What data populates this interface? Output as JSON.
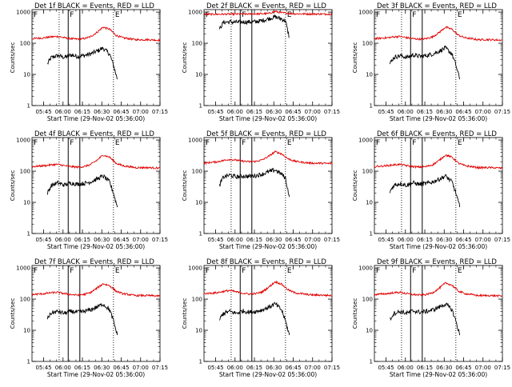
{
  "figure": {
    "background": "#ffffff",
    "event_color": "#000000",
    "lld_color": "#e00000"
  },
  "chart_data": [
    {
      "type": "line",
      "title": "Det 1f BLACK = Events, RED = LLD",
      "xlabel": "Start Time (29-Nov-02 05:36:00)",
      "ylabel": "Counts/sec",
      "xticks": [
        "05:45",
        "06:00",
        "06:15",
        "06:30",
        "06:45",
        "07:00",
        "07:15"
      ],
      "xlim_min": [
        0,
        99
      ],
      "ylim": [
        1,
        1200
      ],
      "yscale": "log",
      "yticks": [
        "1",
        "10",
        "100",
        "1000"
      ],
      "dotted_lines_min": [
        21,
        63
      ],
      "solid_lines_min": [
        28,
        37
      ],
      "markers": [
        {
          "label": "F",
          "at_min": 0
        },
        {
          "label": "F",
          "at_min": 28
        },
        {
          "label": "E",
          "at_min": 63
        }
      ],
      "series": [
        {
          "name": "Events",
          "x": [
            12,
            15,
            20,
            25,
            30,
            35,
            40,
            45,
            50,
            55,
            60,
            63,
            66
          ],
          "y": [
            22,
            35,
            40,
            35,
            42,
            38,
            40,
            45,
            55,
            70,
            45,
            20,
            7
          ]
        },
        {
          "name": "LLD",
          "x": [
            0,
            5,
            10,
            15,
            20,
            25,
            30,
            35,
            40,
            45,
            50,
            55,
            60,
            65,
            70,
            75,
            80,
            85,
            90,
            99
          ],
          "y": [
            140,
            145,
            150,
            160,
            165,
            150,
            140,
            135,
            140,
            160,
            220,
            330,
            280,
            180,
            150,
            140,
            130,
            130,
            130,
            125
          ]
        }
      ]
    },
    {
      "type": "line",
      "title": "Det 2f BLACK = Events, RED = LLD",
      "xlabel": "Start Time (29-Nov-02 05:36:00)",
      "ylabel": "Counts/sec",
      "xticks": [
        "05:45",
        "06:00",
        "06:15",
        "06:30",
        "06:45",
        "07:00",
        "07:15"
      ],
      "xlim_min": [
        0,
        99
      ],
      "ylim": [
        1,
        1200
      ],
      "yscale": "log",
      "yticks": [
        "1",
        "10",
        "100",
        "1000"
      ],
      "dotted_lines_min": [
        21,
        63
      ],
      "solid_lines_min": [
        28,
        37
      ],
      "markers": [
        {
          "label": "F",
          "at_min": 0
        },
        {
          "label": "F",
          "at_min": 28
        },
        {
          "label": "E",
          "at_min": 63
        }
      ],
      "series": [
        {
          "name": "Events",
          "x": [
            12,
            15,
            20,
            25,
            30,
            35,
            40,
            45,
            50,
            55,
            60,
            63,
            66
          ],
          "y": [
            280,
            470,
            480,
            470,
            480,
            480,
            490,
            530,
            610,
            700,
            600,
            520,
            150
          ]
        },
        {
          "name": "LLD",
          "x": [
            0,
            10,
            20,
            30,
            40,
            50,
            55,
            60,
            70,
            80,
            99
          ],
          "y": [
            850,
            850,
            860,
            860,
            870,
            900,
            1050,
            950,
            880,
            870,
            860
          ]
        }
      ]
    },
    {
      "type": "line",
      "title": "Det 3f BLACK = Events, RED = LLD",
      "xlabel": "Start Time (29-Nov-02 05:36:00)",
      "ylabel": "Counts/sec",
      "xticks": [
        "05:45",
        "06:00",
        "06:15",
        "06:30",
        "06:45",
        "07:00",
        "07:15"
      ],
      "xlim_min": [
        0,
        99
      ],
      "ylim": [
        1,
        1200
      ],
      "yscale": "log",
      "yticks": [
        "1",
        "10",
        "100",
        "1000"
      ],
      "dotted_lines_min": [
        21,
        63
      ],
      "solid_lines_min": [
        28,
        37
      ],
      "markers": [
        {
          "label": "F",
          "at_min": 0
        },
        {
          "label": "F",
          "at_min": 28
        },
        {
          "label": "E",
          "at_min": 63
        }
      ],
      "series": [
        {
          "name": "Events",
          "x": [
            12,
            15,
            20,
            25,
            30,
            35,
            40,
            45,
            50,
            55,
            60,
            63,
            66
          ],
          "y": [
            22,
            35,
            40,
            35,
            42,
            38,
            40,
            45,
            55,
            70,
            45,
            20,
            7
          ]
        },
        {
          "name": "LLD",
          "x": [
            0,
            5,
            10,
            15,
            20,
            25,
            30,
            35,
            40,
            45,
            50,
            55,
            60,
            65,
            70,
            75,
            80,
            85,
            90,
            99
          ],
          "y": [
            140,
            145,
            150,
            160,
            165,
            150,
            140,
            135,
            140,
            160,
            220,
            330,
            280,
            180,
            150,
            140,
            130,
            130,
            130,
            125
          ]
        }
      ]
    },
    {
      "type": "line",
      "title": "Det 4f BLACK = Events, RED = LLD",
      "xlabel": "Start Time (29-Nov-02 05:36:00)",
      "ylabel": "Counts/sec",
      "xticks": [
        "05:45",
        "06:00",
        "06:15",
        "06:30",
        "06:45",
        "07:00",
        "07:15"
      ],
      "xlim_min": [
        0,
        99
      ],
      "ylim": [
        1,
        1200
      ],
      "yscale": "log",
      "yticks": [
        "1",
        "10",
        "100",
        "1000"
      ],
      "dotted_lines_min": [
        21,
        63
      ],
      "solid_lines_min": [
        28,
        37
      ],
      "markers": [
        {
          "label": "F",
          "at_min": 0
        },
        {
          "label": "F",
          "at_min": 28
        },
        {
          "label": "E",
          "at_min": 63
        }
      ],
      "series": [
        {
          "name": "Events",
          "x": [
            12,
            15,
            20,
            25,
            30,
            35,
            40,
            45,
            50,
            55,
            60,
            63,
            66
          ],
          "y": [
            20,
            35,
            42,
            36,
            42,
            38,
            40,
            45,
            55,
            70,
            45,
            20,
            7
          ]
        },
        {
          "name": "LLD",
          "x": [
            0,
            5,
            10,
            15,
            20,
            25,
            30,
            35,
            40,
            45,
            50,
            55,
            60,
            65,
            70,
            75,
            80,
            85,
            90,
            99
          ],
          "y": [
            140,
            145,
            150,
            160,
            165,
            150,
            140,
            135,
            140,
            160,
            220,
            330,
            280,
            180,
            150,
            140,
            130,
            130,
            130,
            125
          ]
        }
      ]
    },
    {
      "type": "line",
      "title": "Det 5f BLACK = Events, RED = LLD",
      "xlabel": "Start Time (29-Nov-02 05:36:00)",
      "ylabel": "Counts/sec",
      "xticks": [
        "05:45",
        "06:00",
        "06:15",
        "06:30",
        "06:45",
        "07:00",
        "07:15"
      ],
      "xlim_min": [
        0,
        99
      ],
      "ylim": [
        1,
        1200
      ],
      "yscale": "log",
      "yticks": [
        "1",
        "10",
        "100",
        "1000"
      ],
      "dotted_lines_min": [
        21,
        63
      ],
      "solid_lines_min": [
        28,
        37
      ],
      "markers": [
        {
          "label": "F",
          "at_min": 0
        },
        {
          "label": "F",
          "at_min": 28
        },
        {
          "label": "E",
          "at_min": 63
        }
      ],
      "series": [
        {
          "name": "Events",
          "x": [
            12,
            15,
            20,
            25,
            30,
            35,
            40,
            45,
            50,
            55,
            60,
            63,
            66
          ],
          "y": [
            35,
            65,
            75,
            65,
            70,
            68,
            72,
            80,
            95,
            110,
            80,
            60,
            15
          ]
        },
        {
          "name": "LLD",
          "x": [
            0,
            5,
            10,
            15,
            20,
            25,
            30,
            35,
            40,
            45,
            50,
            55,
            60,
            65,
            70,
            75,
            80,
            85,
            90,
            99
          ],
          "y": [
            180,
            190,
            200,
            220,
            240,
            225,
            210,
            200,
            205,
            230,
            300,
            420,
            360,
            250,
            210,
            195,
            185,
            180,
            180,
            175
          ]
        }
      ]
    },
    {
      "type": "line",
      "title": "Det 6f BLACK = Events, RED = LLD",
      "xlabel": "Start Time (29-Nov-02 05:36:00)",
      "ylabel": "Counts/sec",
      "xticks": [
        "05:45",
        "06:00",
        "06:15",
        "06:30",
        "06:45",
        "07:00",
        "07:15"
      ],
      "xlim_min": [
        0,
        99
      ],
      "ylim": [
        1,
        1200
      ],
      "yscale": "log",
      "yticks": [
        "1",
        "10",
        "100",
        "1000"
      ],
      "dotted_lines_min": [
        21,
        63
      ],
      "solid_lines_min": [
        28,
        37
      ],
      "markers": [
        {
          "label": "F",
          "at_min": 0
        },
        {
          "label": "F",
          "at_min": 28
        },
        {
          "label": "E",
          "at_min": 63
        }
      ],
      "series": [
        {
          "name": "Events",
          "x": [
            12,
            15,
            20,
            25,
            30,
            35,
            40,
            45,
            50,
            55,
            60,
            63,
            66
          ],
          "y": [
            22,
            35,
            40,
            35,
            42,
            38,
            40,
            45,
            55,
            70,
            45,
            20,
            7
          ]
        },
        {
          "name": "LLD",
          "x": [
            0,
            5,
            10,
            15,
            20,
            25,
            30,
            35,
            40,
            45,
            50,
            55,
            60,
            65,
            70,
            75,
            80,
            85,
            90,
            99
          ],
          "y": [
            140,
            145,
            150,
            160,
            165,
            150,
            140,
            135,
            140,
            160,
            220,
            330,
            280,
            180,
            150,
            140,
            130,
            130,
            130,
            125
          ]
        }
      ]
    },
    {
      "type": "line",
      "title": "Det 7f BLACK = Events, RED = LLD",
      "xlabel": "Start Time (29-Nov-02 05:36:00)",
      "ylabel": "Counts/sec",
      "xticks": [
        "05:45",
        "06:00",
        "06:15",
        "06:30",
        "06:45",
        "07:00",
        "07:15"
      ],
      "xlim_min": [
        0,
        99
      ],
      "ylim": [
        1,
        1200
      ],
      "yscale": "log",
      "yticks": [
        "1",
        "10",
        "100",
        "1000"
      ],
      "dotted_lines_min": [
        21,
        63
      ],
      "solid_lines_min": [
        28,
        37
      ],
      "markers": [
        {
          "label": "F",
          "at_min": 0
        },
        {
          "label": "F",
          "at_min": 28
        },
        {
          "label": "E",
          "at_min": 63
        }
      ],
      "series": [
        {
          "name": "Events",
          "x": [
            12,
            15,
            20,
            25,
            30,
            35,
            40,
            45,
            50,
            55,
            60,
            63,
            66
          ],
          "y": [
            25,
            36,
            40,
            35,
            40,
            38,
            40,
            45,
            55,
            70,
            45,
            20,
            7
          ]
        },
        {
          "name": "LLD",
          "x": [
            0,
            5,
            10,
            15,
            20,
            25,
            30,
            35,
            40,
            45,
            50,
            55,
            60,
            65,
            70,
            75,
            80,
            85,
            90,
            99
          ],
          "y": [
            140,
            145,
            150,
            160,
            165,
            150,
            140,
            135,
            140,
            160,
            220,
            310,
            270,
            180,
            150,
            140,
            130,
            130,
            130,
            125
          ]
        }
      ]
    },
    {
      "type": "line",
      "title": "Det 8f BLACK = Events, RED = LLD",
      "xlabel": "Start Time (29-Nov-02 05:36:00)",
      "ylabel": "Counts/sec",
      "xticks": [
        "05:45",
        "06:00",
        "06:15",
        "06:30",
        "06:45",
        "07:00",
        "07:15"
      ],
      "xlim_min": [
        0,
        99
      ],
      "ylim": [
        1,
        1200
      ],
      "yscale": "log",
      "yticks": [
        "1",
        "10",
        "100",
        "1000"
      ],
      "dotted_lines_min": [
        21,
        63
      ],
      "solid_lines_min": [
        28,
        37
      ],
      "markers": [
        {
          "label": "F",
          "at_min": 0
        },
        {
          "label": "F",
          "at_min": 28
        },
        {
          "label": "E",
          "at_min": 63
        }
      ],
      "series": [
        {
          "name": "Events",
          "x": [
            12,
            15,
            20,
            25,
            30,
            35,
            40,
            45,
            50,
            55,
            60,
            63,
            66
          ],
          "y": [
            22,
            35,
            40,
            35,
            42,
            38,
            40,
            45,
            55,
            70,
            45,
            20,
            7
          ]
        },
        {
          "name": "LLD",
          "x": [
            0,
            5,
            10,
            15,
            20,
            25,
            30,
            35,
            40,
            45,
            50,
            55,
            60,
            65,
            70,
            75,
            80,
            85,
            90,
            99
          ],
          "y": [
            150,
            155,
            160,
            175,
            190,
            170,
            155,
            145,
            150,
            170,
            240,
            360,
            300,
            200,
            160,
            150,
            140,
            135,
            135,
            130
          ]
        }
      ]
    },
    {
      "type": "line",
      "title": "Det 9f BLACK = Events, RED = LLD",
      "xlabel": "Start Time (29-Nov-02 05:36:00)",
      "ylabel": "Counts/sec",
      "xticks": [
        "05:45",
        "06:00",
        "06:15",
        "06:30",
        "06:45",
        "07:00",
        "07:15"
      ],
      "xlim_min": [
        0,
        99
      ],
      "ylim": [
        1,
        1200
      ],
      "yscale": "log",
      "yticks": [
        "1",
        "10",
        "100",
        "1000"
      ],
      "dotted_lines_min": [
        21,
        63
      ],
      "solid_lines_min": [
        28,
        37
      ],
      "markers": [
        {
          "label": "F",
          "at_min": 0
        },
        {
          "label": "F",
          "at_min": 28
        },
        {
          "label": "E",
          "at_min": 63
        }
      ],
      "series": [
        {
          "name": "Events",
          "x": [
            12,
            15,
            20,
            25,
            30,
            35,
            40,
            45,
            50,
            55,
            60,
            63,
            66
          ],
          "y": [
            22,
            35,
            40,
            35,
            42,
            38,
            40,
            45,
            55,
            70,
            45,
            20,
            7
          ]
        },
        {
          "name": "LLD",
          "x": [
            0,
            5,
            10,
            15,
            20,
            25,
            30,
            35,
            40,
            45,
            50,
            55,
            60,
            65,
            70,
            75,
            80,
            85,
            90,
            99
          ],
          "y": [
            140,
            145,
            150,
            160,
            165,
            150,
            140,
            135,
            140,
            160,
            220,
            330,
            280,
            180,
            150,
            140,
            130,
            130,
            130,
            125
          ]
        }
      ]
    }
  ]
}
